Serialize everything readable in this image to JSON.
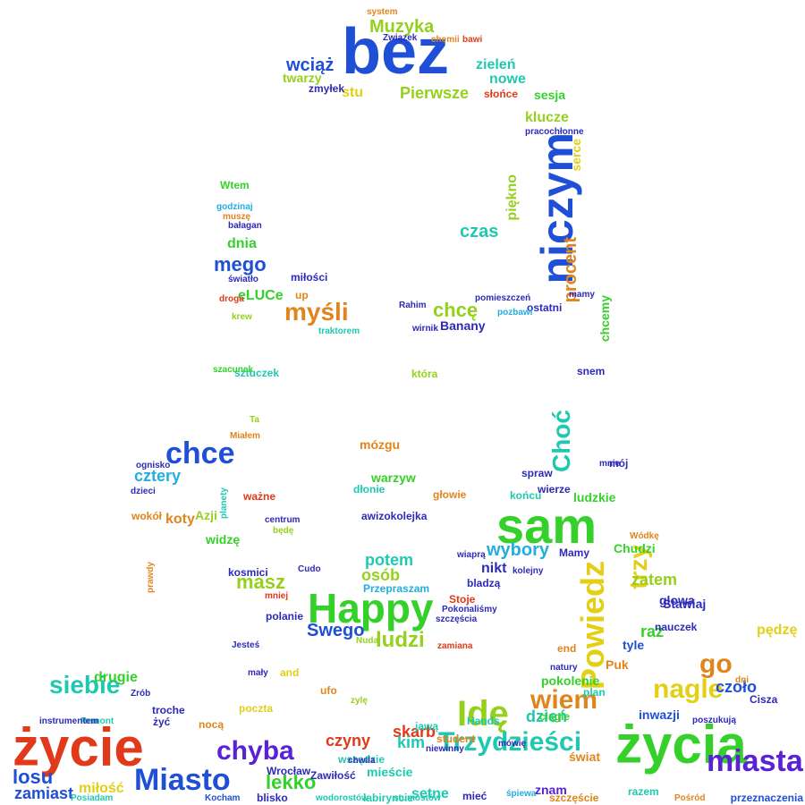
{
  "colors": {
    "blue": "#1f4fd6",
    "green": "#35d12a",
    "lime": "#96d01e",
    "yellow": "#e3cf14",
    "orange": "#e0851b",
    "red": "#e03a1a",
    "cyan": "#22aee0",
    "teal": "#1ec9b0",
    "purple": "#5a22d6",
    "indigo": "#2d2ab8"
  },
  "words": [
    {
      "t": "bez",
      "c": "blue"
    },
    {
      "t": "życie",
      "c": "red"
    },
    {
      "t": "życia",
      "c": "green"
    },
    {
      "t": "sam",
      "c": "green"
    },
    {
      "t": "Happy",
      "c": "green"
    },
    {
      "t": "niczym",
      "c": "blue"
    },
    {
      "t": "Idę",
      "c": "lime"
    },
    {
      "t": "Miasto",
      "c": "blue"
    },
    {
      "t": "chce",
      "c": "blue"
    },
    {
      "t": "miasta",
      "c": "purple"
    },
    {
      "t": "Powiedz",
      "c": "yellow"
    },
    {
      "t": "nagle",
      "c": "yellow"
    },
    {
      "t": "Trzydzieści",
      "c": "teal"
    },
    {
      "t": "chyba",
      "c": "purple"
    },
    {
      "t": "wiem",
      "c": "orange"
    },
    {
      "t": "go",
      "c": "orange"
    },
    {
      "t": "siebie",
      "c": "teal"
    },
    {
      "t": "Choć",
      "c": "teal"
    },
    {
      "t": "lekko",
      "c": "green"
    },
    {
      "t": "ludzi",
      "c": "lime"
    },
    {
      "t": "trzy",
      "c": "yellow"
    },
    {
      "t": "Muzyka",
      "c": "lime"
    },
    {
      "t": "myśli",
      "c": "orange"
    },
    {
      "t": "chcę",
      "c": "lime"
    },
    {
      "t": "procent",
      "c": "orange"
    },
    {
      "t": "masz",
      "c": "lime"
    },
    {
      "t": "losu",
      "c": "blue"
    },
    {
      "t": "wybory",
      "c": "cyan"
    },
    {
      "t": "czoło",
      "c": "blue"
    },
    {
      "t": "wciąż",
      "c": "blue"
    },
    {
      "t": "mego",
      "c": "blue"
    },
    {
      "t": "czas",
      "c": "teal"
    },
    {
      "t": "Swego",
      "c": "blue"
    },
    {
      "t": "Pierwsze",
      "c": "lime"
    },
    {
      "t": "potem",
      "c": "teal"
    },
    {
      "t": "osób",
      "c": "lime"
    },
    {
      "t": "cztery",
      "c": "cyan"
    },
    {
      "t": "skarb",
      "c": "red"
    },
    {
      "t": "kim",
      "c": "teal"
    },
    {
      "t": "dzień",
      "c": "teal"
    },
    {
      "t": "czyny",
      "c": "red"
    },
    {
      "t": "nowe",
      "c": "teal"
    },
    {
      "t": "zamiast",
      "c": "blue"
    },
    {
      "t": "drugie",
      "c": "green"
    },
    {
      "t": "miłość",
      "c": "yellow"
    },
    {
      "t": "setne",
      "c": "teal"
    },
    {
      "t": "znam",
      "c": "purple"
    },
    {
      "t": "koty",
      "c": "orange"
    },
    {
      "t": "zatem",
      "c": "lime"
    },
    {
      "t": "raz",
      "c": "green"
    },
    {
      "t": "pędzę",
      "c": "yellow"
    },
    {
      "t": "Stawiaj",
      "c": "indigo"
    },
    {
      "t": "nikt",
      "c": "indigo"
    },
    {
      "t": "zieleń",
      "c": "teal"
    },
    {
      "t": "twarzy",
      "c": "lime"
    },
    {
      "t": "stu",
      "c": "yellow"
    },
    {
      "t": "klucze",
      "c": "lime"
    },
    {
      "t": "sesja",
      "c": "green"
    },
    {
      "t": "dnia",
      "c": "green"
    },
    {
      "t": "eLUCe",
      "c": "green"
    },
    {
      "t": "mózgu",
      "c": "orange"
    },
    {
      "t": "warzyw",
      "c": "green"
    },
    {
      "t": "mieście",
      "c": "teal"
    },
    {
      "t": "pokolenie",
      "c": "green"
    },
    {
      "t": "inwazji",
      "c": "blue"
    },
    {
      "t": "tyle",
      "c": "blue"
    },
    {
      "t": "Puk",
      "c": "orange"
    },
    {
      "t": "widzę",
      "c": "green"
    },
    {
      "t": "Azji",
      "c": "lime"
    },
    {
      "t": "ludzkie",
      "c": "green"
    },
    {
      "t": "chcemy",
      "c": "green"
    },
    {
      "t": "Banany",
      "c": "indigo"
    },
    {
      "t": "system",
      "c": "orange"
    },
    {
      "t": "Związek",
      "c": "indigo"
    },
    {
      "t": "Rahim",
      "c": "indigo"
    },
    {
      "t": "miłości",
      "c": "indigo"
    },
    {
      "t": "światło",
      "c": "indigo"
    },
    {
      "t": "kosmici",
      "c": "indigo"
    },
    {
      "t": "polanie",
      "c": "indigo"
    },
    {
      "t": "słońce",
      "c": "red"
    },
    {
      "t": "Przepraszam",
      "c": "cyan"
    },
    {
      "t": "stumostów",
      "c": "teal"
    },
    {
      "t": "Kocham",
      "c": "blue"
    },
    {
      "t": "Pośród",
      "c": "orange"
    },
    {
      "t": "przeznaczenia",
      "c": "blue"
    },
    {
      "t": "szczęście",
      "c": "orange"
    },
    {
      "t": "razem",
      "c": "teal"
    },
    {
      "t": "labiryncie",
      "c": "teal"
    },
    {
      "t": "wodorostów",
      "c": "teal"
    },
    {
      "t": "ostatni",
      "c": "indigo"
    },
    {
      "t": "mamy",
      "c": "indigo"
    },
    {
      "t": "pomieszczeń",
      "c": "indigo"
    },
    {
      "t": "traktorem",
      "c": "teal"
    },
    {
      "t": "awizokolejka",
      "c": "indigo"
    },
    {
      "t": "mówię",
      "c": "indigo"
    },
    {
      "t": "świat",
      "c": "orange"
    },
    {
      "t": "Wrocław",
      "c": "indigo"
    },
    {
      "t": "Zawiłość",
      "c": "indigo"
    },
    {
      "t": "Remont",
      "c": "teal"
    },
    {
      "t": "instrumentem",
      "c": "indigo"
    },
    {
      "t": "Posiadam",
      "c": "teal"
    },
    {
      "t": "poczta",
      "c": "yellow"
    },
    {
      "t": "Miałem",
      "c": "orange"
    },
    {
      "t": "ważne",
      "c": "red"
    },
    {
      "t": "mały",
      "c": "indigo"
    },
    {
      "t": "Jesteś",
      "c": "indigo"
    },
    {
      "t": "troche",
      "c": "indigo"
    },
    {
      "t": "nocą",
      "c": "orange"
    },
    {
      "t": "ufo",
      "c": "orange"
    },
    {
      "t": "and",
      "c": "yellow"
    },
    {
      "t": "glowa",
      "c": "indigo"
    },
    {
      "t": "Chudzi",
      "c": "green"
    },
    {
      "t": "pozbawi",
      "c": "cyan"
    },
    {
      "t": "wirnik",
      "c": "indigo"
    },
    {
      "t": "bałagan",
      "c": "indigo"
    },
    {
      "t": "muszę",
      "c": "orange"
    },
    {
      "t": "Wtem",
      "c": "green"
    },
    {
      "t": "sztuczek",
      "c": "teal"
    },
    {
      "t": "mój",
      "c": "indigo"
    },
    {
      "t": "ciągle",
      "c": "green"
    },
    {
      "t": "jawą",
      "c": "teal"
    },
    {
      "t": "wszędzie",
      "c": "teal"
    },
    {
      "t": "Cisza",
      "c": "indigo"
    },
    {
      "t": "Hands",
      "c": "teal"
    },
    {
      "t": "student",
      "c": "orange"
    },
    {
      "t": "chwila",
      "c": "indigo"
    },
    {
      "t": "snem",
      "c": "indigo"
    },
    {
      "t": "dzieci",
      "c": "indigo"
    },
    {
      "t": "wokół",
      "c": "orange"
    },
    {
      "t": "natury",
      "c": "indigo"
    },
    {
      "t": "plan",
      "c": "teal"
    },
    {
      "t": "poszukują",
      "c": "indigo"
    },
    {
      "t": "end",
      "c": "orange"
    },
    {
      "t": "dłonie",
      "c": "teal"
    },
    {
      "t": "głowie",
      "c": "orange"
    },
    {
      "t": "dni",
      "c": "orange"
    },
    {
      "t": "bawi",
      "c": "red"
    },
    {
      "t": "chemii",
      "c": "orange"
    },
    {
      "t": "pracochłonne",
      "c": "indigo"
    },
    {
      "t": "będę",
      "c": "lime"
    },
    {
      "t": "szczęścia",
      "c": "indigo"
    },
    {
      "t": "zamiana",
      "c": "red"
    },
    {
      "t": "up",
      "c": "orange"
    },
    {
      "t": "zmyłek",
      "c": "indigo"
    },
    {
      "t": "Stoje",
      "c": "red"
    },
    {
      "t": "bladzą",
      "c": "indigo"
    },
    {
      "t": "krew",
      "c": "lime"
    },
    {
      "t": "droga",
      "c": "red"
    },
    {
      "t": "kolejny",
      "c": "indigo"
    },
    {
      "t": "spraw",
      "c": "indigo"
    },
    {
      "t": "końcu",
      "c": "teal"
    },
    {
      "t": "Ta",
      "c": "lime"
    },
    {
      "t": "blisko",
      "c": "indigo"
    },
    {
      "t": "mieć",
      "c": "indigo"
    },
    {
      "t": "śpiewa",
      "c": "cyan"
    },
    {
      "t": "niewinny",
      "c": "indigo"
    },
    {
      "t": "zylę",
      "c": "lime"
    },
    {
      "t": "godzinaj",
      "c": "cyan"
    },
    {
      "t": "szacunek",
      "c": "green"
    },
    {
      "t": "planety",
      "c": "teal"
    },
    {
      "t": "ognisko",
      "c": "indigo"
    },
    {
      "t": "żyć",
      "c": "indigo"
    },
    {
      "t": "Zrób",
      "c": "indigo"
    },
    {
      "t": "serce",
      "c": "yellow"
    },
    {
      "t": "piękno",
      "c": "lime"
    },
    {
      "t": "która",
      "c": "lime"
    },
    {
      "t": "wierze",
      "c": "indigo"
    },
    {
      "t": "mnie",
      "c": "indigo"
    },
    {
      "t": "Mamy",
      "c": "indigo"
    },
    {
      "t": "nauczek",
      "c": "indigo"
    },
    {
      "t": "prawdy",
      "c": "orange"
    },
    {
      "t": "Nuda",
      "c": "lime"
    },
    {
      "t": "centrum",
      "c": "indigo"
    },
    {
      "t": "Pokonaliśmy",
      "c": "indigo"
    },
    {
      "t": "Cudo",
      "c": "indigo"
    },
    {
      "t": "mniej",
      "c": "red"
    },
    {
      "t": "wiaprą",
      "c": "indigo"
    },
    {
      "t": "Wódkę",
      "c": "orange"
    }
  ]
}
